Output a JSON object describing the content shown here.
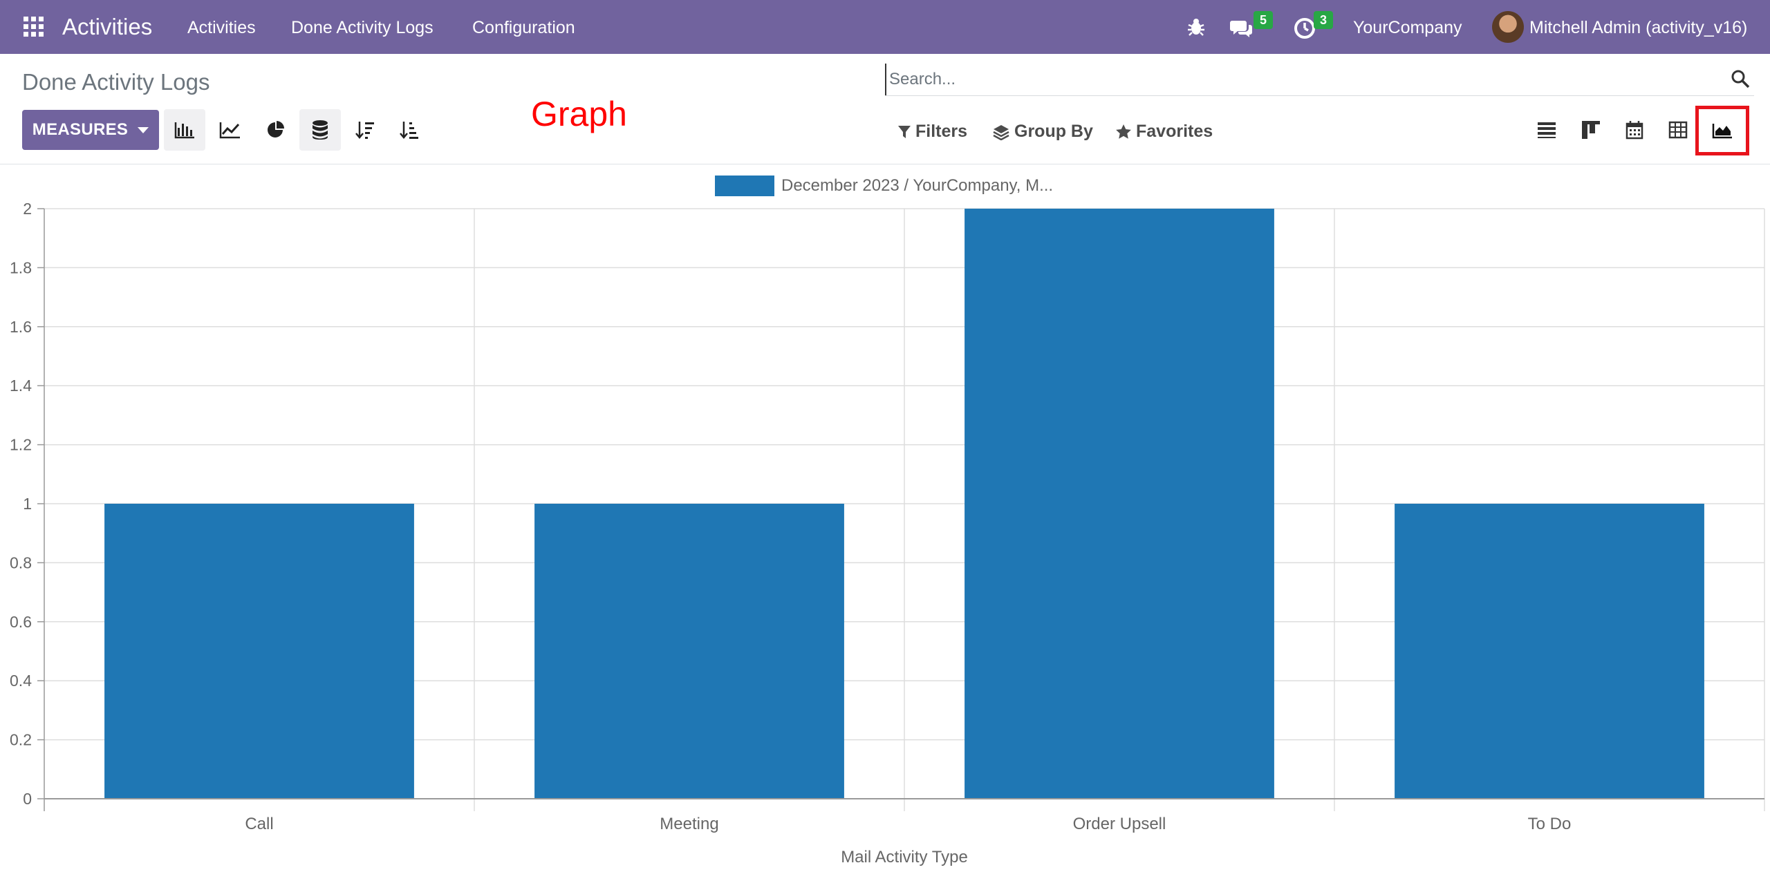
{
  "navbar": {
    "brand": "Activities",
    "menu": [
      "Activities",
      "Done Activity Logs",
      "Configuration"
    ],
    "messages_count": "5",
    "activities_count": "3",
    "company": "YourCompany",
    "user": "Mitchell Admin (activity_v16)"
  },
  "control_panel": {
    "title": "Done Activity Logs",
    "measures_label": "MEASURES",
    "annotation": "Graph",
    "search_placeholder": "Search...",
    "filters_label": "Filters",
    "group_by_label": "Group By",
    "favorites_label": "Favorites"
  },
  "colors": {
    "navbar": "#71639e",
    "bar": "#1f77b4",
    "highlight": "#e8141c"
  },
  "chart_data": {
    "type": "bar",
    "categories": [
      "Call",
      "Meeting",
      "Order Upsell",
      "To Do"
    ],
    "series": [
      {
        "name": "December 2023 / YourCompany, M...",
        "values": [
          1,
          1,
          2,
          1
        ]
      }
    ],
    "xlabel": "Mail Activity Type",
    "ylabel": "",
    "ylim": [
      0,
      2
    ],
    "yticks": [
      "0",
      "0.2",
      "0.4",
      "0.6",
      "0.8",
      "1",
      "1.2",
      "1.4",
      "1.6",
      "1.8",
      "2"
    ],
    "grid": true,
    "legend": "top-center"
  }
}
